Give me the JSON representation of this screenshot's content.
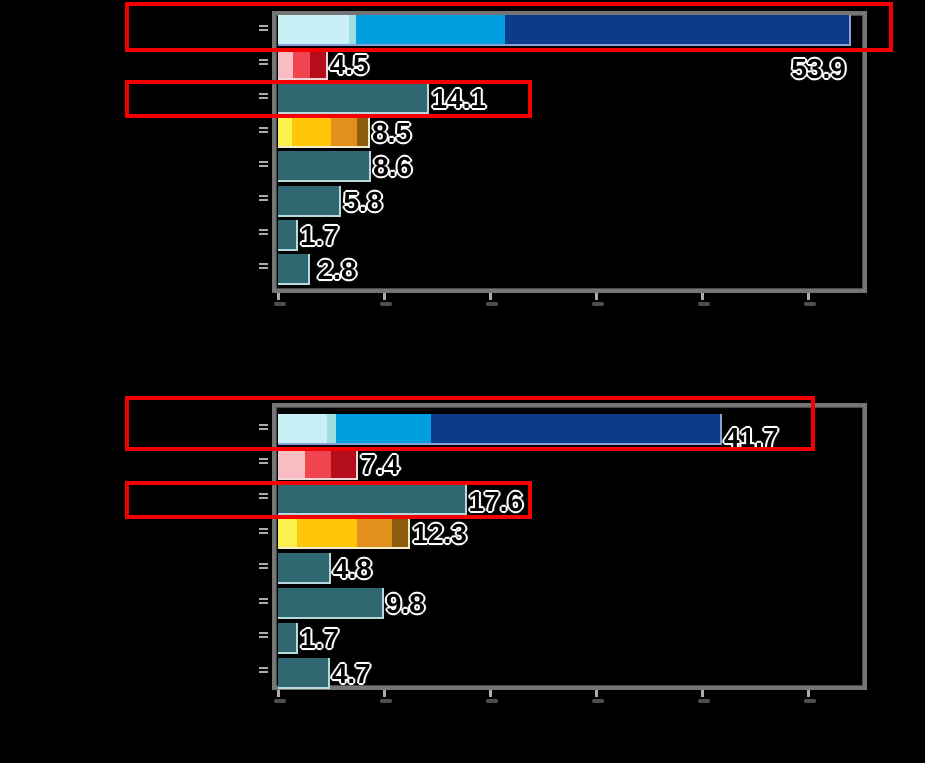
{
  "background_color": "#000000",
  "frame_color": "#757575",
  "tick_color": "#ababab",
  "value_label_style": {
    "fill": "#000000",
    "halo": "#ffffff"
  },
  "annotations": {
    "highlight_color": "#f40000",
    "highlight_boxes": [
      {
        "chart": 0,
        "bar_index": 0
      },
      {
        "chart": 0,
        "bar_index": 2
      },
      {
        "chart": 1,
        "bar_index": 0
      },
      {
        "chart": 1,
        "bar_index": 2
      }
    ]
  },
  "chart_data": [
    {
      "type": "bar",
      "orientation": "horizontal",
      "title": "",
      "xlabel": "",
      "ylabel": "",
      "x_axis": {
        "min": 0,
        "max": 55,
        "tick_interval": 10,
        "ticks": [
          0,
          10,
          20,
          30,
          40,
          50
        ],
        "tick_labels_visible": false
      },
      "categories": [
        "",
        "",
        "",
        "",
        "",
        "",
        "",
        ""
      ],
      "bars": [
        {
          "label": "53.9",
          "total": 53.9,
          "highlighted": true,
          "segments": [
            {
              "value": 6.7,
              "color": "#c8f0f6"
            },
            {
              "value": 0.7,
              "color": "#9fdfe4"
            },
            {
              "value": 14.0,
              "color": "#009fe0"
            },
            {
              "value": 32.5,
              "color": "#0d3a8a"
            }
          ],
          "edge": "#8c9fd6",
          "label_offset": [
            -62,
            38
          ]
        },
        {
          "label": "4.5",
          "total": 4.5,
          "highlighted": false,
          "segments": [
            {
              "value": 1.4,
              "color": "#f7bdc3"
            },
            {
              "value": 1.6,
              "color": "#f0454f"
            },
            {
              "value": 1.5,
              "color": "#b40d1b"
            }
          ],
          "edge": "#f3d6d8",
          "label_offset": [
            0,
            0
          ]
        },
        {
          "label": "14.1",
          "total": 14.1,
          "highlighted": true,
          "segments": [
            {
              "value": 14.1,
              "color": "#2f6870"
            }
          ],
          "edge": "#b9d8dc",
          "label_offset": [
            0,
            0
          ]
        },
        {
          "label": "8.5",
          "total": 8.5,
          "highlighted": false,
          "segments": [
            {
              "value": 1.3,
              "color": "#fbf24f"
            },
            {
              "value": 3.7,
              "color": "#ffc60a"
            },
            {
              "value": 2.5,
              "color": "#e28f1c"
            },
            {
              "value": 1.0,
              "color": "#8d5e0f"
            }
          ],
          "edge": "#f2ecc8",
          "label_offset": [
            0,
            0
          ]
        },
        {
          "label": "8.6",
          "total": 8.6,
          "highlighted": false,
          "segments": [
            {
              "value": 8.6,
              "color": "#2f6870"
            }
          ],
          "edge": "#b9d8dc",
          "label_offset": [
            0,
            0
          ]
        },
        {
          "label": "5.8",
          "total": 5.8,
          "highlighted": false,
          "segments": [
            {
              "value": 5.8,
              "color": "#2f6870"
            }
          ],
          "edge": "#b9d8dc",
          "label_offset": [
            0,
            0
          ]
        },
        {
          "label": "1.7",
          "total": 1.7,
          "highlighted": false,
          "segments": [
            {
              "value": 1.7,
              "color": "#2f6870"
            }
          ],
          "edge": "#b9d8dc",
          "label_offset": [
            0,
            0
          ]
        },
        {
          "label": "2.8",
          "total": 2.8,
          "highlighted": false,
          "segments": [
            {
              "value": 2.8,
              "color": "#2f6870"
            }
          ],
          "edge": "#b9d8dc",
          "label_offset": [
            6,
            0
          ]
        }
      ]
    },
    {
      "type": "bar",
      "orientation": "horizontal",
      "title": "",
      "xlabel": "",
      "ylabel": "",
      "x_axis": {
        "min": 0,
        "max": 55,
        "tick_interval": 10,
        "ticks": [
          0,
          10,
          20,
          30,
          40,
          50
        ],
        "tick_labels_visible": false
      },
      "categories": [
        "",
        "",
        "",
        "",
        "",
        "",
        "",
        ""
      ],
      "bars": [
        {
          "label": "41.7",
          "total": 41.7,
          "highlighted": true,
          "segments": [
            {
              "value": 4.6,
              "color": "#c8f0f6"
            },
            {
              "value": 0.9,
              "color": "#9fdfe4"
            },
            {
              "value": 8.9,
              "color": "#009fe0"
            },
            {
              "value": 27.3,
              "color": "#0d3a8a"
            }
          ],
          "edge": "#8c9fd6",
          "label_offset": [
            0,
            8
          ]
        },
        {
          "label": "7.4",
          "total": 7.4,
          "highlighted": false,
          "segments": [
            {
              "value": 2.5,
              "color": "#f7bdc3"
            },
            {
              "value": 2.5,
              "color": "#f0454f"
            },
            {
              "value": 2.4,
              "color": "#b40d1b"
            }
          ],
          "edge": "#f3d6d8",
          "label_offset": [
            0,
            0
          ]
        },
        {
          "label": "17.6",
          "total": 17.6,
          "highlighted": true,
          "segments": [
            {
              "value": 17.6,
              "color": "#2f6870"
            }
          ],
          "edge": "#b9d8dc",
          "label_offset": [
            0,
            2
          ]
        },
        {
          "label": "12.3",
          "total": 12.3,
          "highlighted": false,
          "segments": [
            {
              "value": 1.8,
              "color": "#fbf24f"
            },
            {
              "value": 5.7,
              "color": "#ffc60a"
            },
            {
              "value": 3.3,
              "color": "#e28f1c"
            },
            {
              "value": 1.5,
              "color": "#8d5e0f"
            }
          ],
          "edge": "#f2ecc8",
          "label_offset": [
            0,
            0
          ]
        },
        {
          "label": "4.8",
          "total": 4.8,
          "highlighted": false,
          "segments": [
            {
              "value": 4.8,
              "color": "#2f6870"
            }
          ],
          "edge": "#b9d8dc",
          "label_offset": [
            0,
            0
          ]
        },
        {
          "label": "9.8",
          "total": 9.8,
          "highlighted": false,
          "segments": [
            {
              "value": 9.8,
              "color": "#2f6870"
            }
          ],
          "edge": "#b9d8dc",
          "label_offset": [
            0,
            0
          ]
        },
        {
          "label": "1.7",
          "total": 1.7,
          "highlighted": false,
          "segments": [
            {
              "value": 1.7,
              "color": "#2f6870"
            }
          ],
          "edge": "#b9d8dc",
          "label_offset": [
            0,
            0
          ]
        },
        {
          "label": "4.7",
          "total": 4.7,
          "highlighted": false,
          "segments": [
            {
              "value": 4.7,
              "color": "#2f6870"
            }
          ],
          "edge": "#b9d8dc",
          "label_offset": [
            0,
            0
          ]
        }
      ]
    }
  ]
}
